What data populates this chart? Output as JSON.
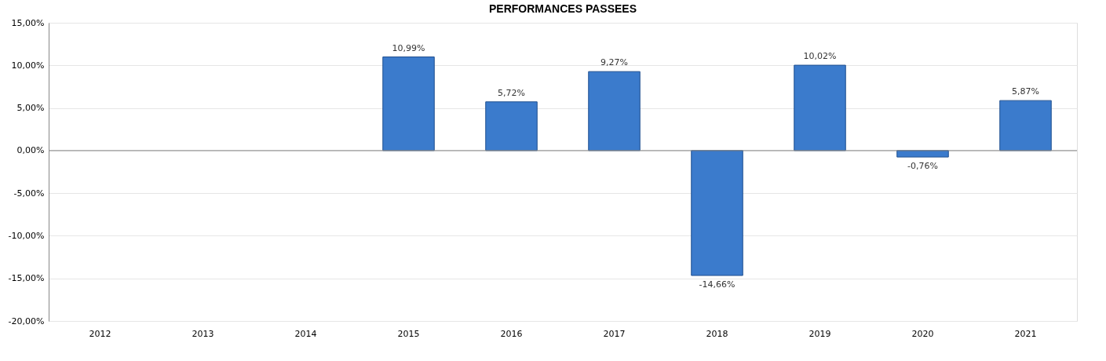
{
  "chart_data": {
    "type": "bar",
    "title": "PERFORMANCES PASSEES",
    "categories": [
      "2012",
      "2013",
      "2014",
      "2015",
      "2016",
      "2017",
      "2018",
      "2019",
      "2020",
      "2021"
    ],
    "series": [
      {
        "color": "#3b7bcc",
        "values": [
          null,
          null,
          null,
          10.99,
          5.72,
          9.27,
          -14.66,
          10.02,
          -0.76,
          5.87
        ],
        "value_labels": [
          null,
          null,
          null,
          "10,99%",
          "5,72%",
          "9,27%",
          "-14,66%",
          "10,02%",
          "-0,76%",
          "5,87%"
        ]
      }
    ],
    "ylim": [
      -20,
      15
    ],
    "yticks": [
      {
        "value": -20,
        "label": "-20,00%"
      },
      {
        "value": -15,
        "label": "-15,00%"
      },
      {
        "value": -10,
        "label": "-10,00%"
      },
      {
        "value": -5,
        "label": "-5,00%"
      },
      {
        "value": 0,
        "label": "0,00%"
      },
      {
        "value": 5,
        "label": "5,00%"
      },
      {
        "value": 10,
        "label": "10,00%"
      },
      {
        "value": 15,
        "label": "15,00%"
      }
    ],
    "grid": "y"
  }
}
